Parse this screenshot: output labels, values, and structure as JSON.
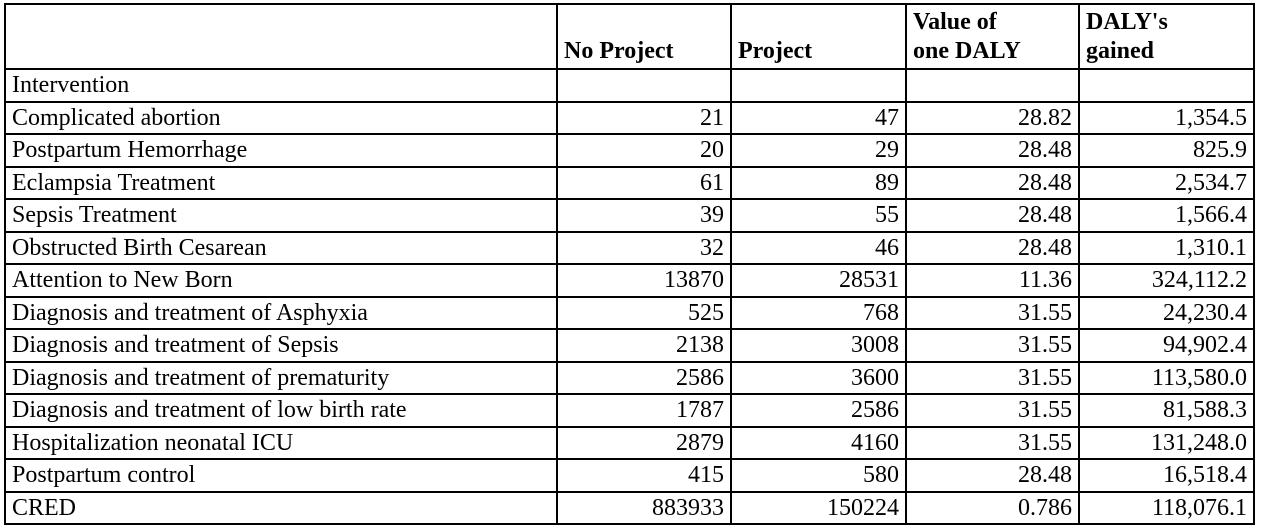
{
  "table": {
    "headers": [
      {
        "line1": "",
        "line2": ""
      },
      {
        "line1": "",
        "line2": "No Project"
      },
      {
        "line1": "",
        "line2": "Project"
      },
      {
        "line1": "Value of",
        "line2": "one DALY"
      },
      {
        "line1": "DALY's",
        "line2": "gained"
      }
    ],
    "section_label": "Intervention",
    "rows": [
      [
        "Complicated abortion",
        "21",
        "47",
        "28.82",
        "1,354.5"
      ],
      [
        "Postpartum Hemorrhage",
        "20",
        "29",
        "28.48",
        "825.9"
      ],
      [
        "Eclampsia Treatment",
        "61",
        "89",
        "28.48",
        "2,534.7"
      ],
      [
        "Sepsis Treatment",
        "39",
        "55",
        "28.48",
        "1,566.4"
      ],
      [
        "Obstructed Birth Cesarean",
        "32",
        "46",
        "28.48",
        "1,310.1"
      ],
      [
        "Attention to New Born",
        "13870",
        "28531",
        "11.36",
        "324,112.2"
      ],
      [
        "Diagnosis and treatment of Asphyxia",
        "525",
        "768",
        "31.55",
        "24,230.4"
      ],
      [
        "Diagnosis and treatment of Sepsis",
        "2138",
        "3008",
        "31.55",
        "94,902.4"
      ],
      [
        "Diagnosis and treatment of prematurity",
        "2586",
        "3600",
        "31.55",
        "113,580.0"
      ],
      [
        "Diagnosis and treatment of low birth rate",
        "1787",
        "2586",
        "31.55",
        "81,588.3"
      ],
      [
        "Hospitalization neonatal ICU",
        "2879",
        "4160",
        "31.55",
        "131,248.0"
      ],
      [
        "Postpartum control",
        "415",
        "580",
        "28.48",
        "16,518.4"
      ],
      [
        "CRED",
        "883933",
        "150224",
        "0.786",
        "118,076.1"
      ]
    ]
  }
}
